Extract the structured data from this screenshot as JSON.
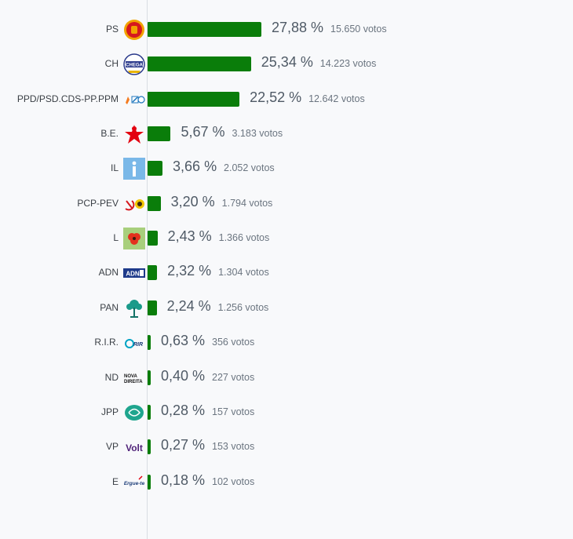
{
  "chart_data": {
    "type": "bar",
    "orientation": "horizontal",
    "xlim": [
      0,
      30
    ],
    "grid": false,
    "legend": "none",
    "bar_color": "#0a7d0a",
    "categories": [
      "PS",
      "CH",
      "PPD/PSD.CDS-PP.PPM",
      "B.E.",
      "IL",
      "PCP-PEV",
      "L",
      "ADN",
      "PAN",
      "R.I.R.",
      "ND",
      "JPP",
      "VP",
      "E"
    ],
    "values": [
      27.88,
      25.34,
      22.52,
      5.67,
      3.66,
      3.2,
      2.43,
      2.32,
      2.24,
      0.63,
      0.4,
      0.28,
      0.27,
      0.18
    ],
    "value_labels": [
      "27,88 %",
      "25,34 %",
      "22,52 %",
      "5,67 %",
      "3,66 %",
      "3,20 %",
      "2,43 %",
      "2,32 %",
      "2,24 %",
      "0,63 %",
      "0,40 %",
      "0,28 %",
      "0,27 %",
      "0,18 %"
    ],
    "votes": [
      15650,
      14223,
      12642,
      3183,
      2052,
      1794,
      1366,
      1304,
      1256,
      356,
      227,
      157,
      153,
      102
    ],
    "vote_labels": [
      "15.650 votos",
      "14.223 votos",
      "12.642 votos",
      "3.183 votos",
      "2.052 votos",
      "1.794 votos",
      "1.366 votos",
      "1.304 votos",
      "1.256 votos",
      "356 votos",
      "227 votos",
      "157 votos",
      "153 votos",
      "102 votos"
    ],
    "logos": [
      {
        "icon": "ps-fist-rose-logo-icon",
        "text": ""
      },
      {
        "icon": "chega-logo-icon",
        "text": "CHEGA"
      },
      {
        "icon": "ad-coalition-logo-icon",
        "text": ""
      },
      {
        "icon": "bloco-star-logo-icon",
        "text": ""
      },
      {
        "icon": "il-logo-icon",
        "text": ""
      },
      {
        "icon": "cdu-hammer-sickle-logo-icon",
        "text": ""
      },
      {
        "icon": "livre-poppy-logo-icon",
        "text": ""
      },
      {
        "icon": "adn-logo-icon",
        "text": "ADN"
      },
      {
        "icon": "pan-tree-logo-icon",
        "text": ""
      },
      {
        "icon": "rir-logo-icon",
        "text": "RIR"
      },
      {
        "icon": "nova-direita-logo-icon",
        "text": "NOVA DIREITA"
      },
      {
        "icon": "jpp-logo-icon",
        "text": ""
      },
      {
        "icon": "volt-logo-icon",
        "text": "Volt"
      },
      {
        "icon": "ergue-te-logo-icon",
        "text": "Ergue-te"
      }
    ]
  }
}
